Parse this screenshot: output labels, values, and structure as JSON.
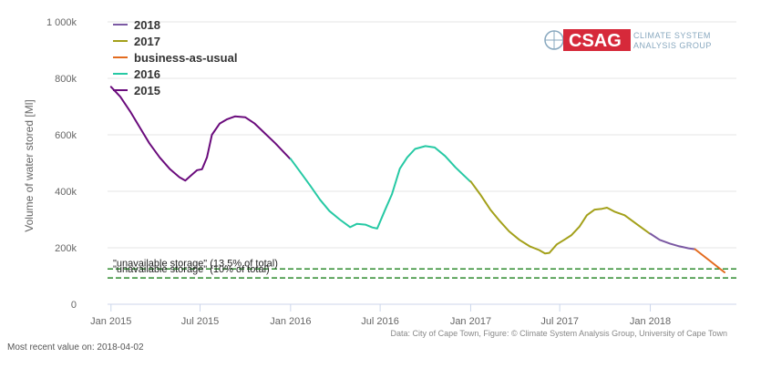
{
  "logo": {
    "brand": "CSAG",
    "line1": "CLIMATE SYSTEM",
    "line2": "ANALYSIS GROUP",
    "brand_color": "#d6293a"
  },
  "credit": "Data: City of Cape Town, Figure: © Climate System Analysis Group, University of Cape Town",
  "recent_note": "Most recent value on: 2018-04-02",
  "chart_data": {
    "type": "line",
    "title": "",
    "xlabel": "",
    "ylabel": "Volume of water stored [Ml]",
    "xlim": [
      "2014-12-25",
      "2018-06-25"
    ],
    "ylim": [
      0,
      1000000
    ],
    "y_ticks": [
      {
        "value": 0,
        "label": "0"
      },
      {
        "value": 200000,
        "label": "200k"
      },
      {
        "value": 400000,
        "label": "400k"
      },
      {
        "value": 600000,
        "label": "600k"
      },
      {
        "value": 800000,
        "label": "800k"
      },
      {
        "value": 1000000,
        "label": "1 000k"
      }
    ],
    "x_ticks": [
      {
        "date": "2015-01-01",
        "label": "Jan 2015"
      },
      {
        "date": "2015-07-01",
        "label": "Jul 2015"
      },
      {
        "date": "2016-01-01",
        "label": "Jan 2016"
      },
      {
        "date": "2016-07-01",
        "label": "Jul 2016"
      },
      {
        "date": "2017-01-01",
        "label": "Jan 2017"
      },
      {
        "date": "2017-07-01",
        "label": "Jul 2017"
      },
      {
        "date": "2018-01-01",
        "label": "Jan 2018"
      }
    ],
    "grid": true,
    "legend_position": "top-left",
    "legend_order": [
      "2018",
      "2017",
      "business-as-usual",
      "2016",
      "2015"
    ],
    "series": [
      {
        "name": "2015",
        "color": "#6a0b7c",
        "points": [
          [
            "2015-01-01",
            770000
          ],
          [
            "2015-01-20",
            735000
          ],
          [
            "2015-02-10",
            680000
          ],
          [
            "2015-03-01",
            625000
          ],
          [
            "2015-03-20",
            570000
          ],
          [
            "2015-04-10",
            520000
          ],
          [
            "2015-05-01",
            478000
          ],
          [
            "2015-05-20",
            450000
          ],
          [
            "2015-06-01",
            438000
          ],
          [
            "2015-06-10",
            452000
          ],
          [
            "2015-06-25",
            475000
          ],
          [
            "2015-07-05",
            478000
          ],
          [
            "2015-07-15",
            520000
          ],
          [
            "2015-07-25",
            600000
          ],
          [
            "2015-08-10",
            640000
          ],
          [
            "2015-08-25",
            655000
          ],
          [
            "2015-09-10",
            665000
          ],
          [
            "2015-10-01",
            662000
          ],
          [
            "2015-10-20",
            640000
          ],
          [
            "2015-11-10",
            605000
          ],
          [
            "2015-12-01",
            570000
          ],
          [
            "2015-12-31",
            515000
          ]
        ]
      },
      {
        "name": "2016",
        "color": "#26c9a4",
        "points": [
          [
            "2016-01-01",
            515000
          ],
          [
            "2016-01-20",
            470000
          ],
          [
            "2016-02-10",
            420000
          ],
          [
            "2016-03-01",
            370000
          ],
          [
            "2016-03-20",
            330000
          ],
          [
            "2016-04-10",
            300000
          ],
          [
            "2016-05-01",
            273000
          ],
          [
            "2016-05-15",
            285000
          ],
          [
            "2016-06-01",
            282000
          ],
          [
            "2016-06-15",
            272000
          ],
          [
            "2016-06-25",
            268000
          ],
          [
            "2016-07-10",
            330000
          ],
          [
            "2016-07-25",
            390000
          ],
          [
            "2016-08-10",
            480000
          ],
          [
            "2016-08-25",
            520000
          ],
          [
            "2016-09-10",
            550000
          ],
          [
            "2016-10-01",
            560000
          ],
          [
            "2016-10-20",
            555000
          ],
          [
            "2016-11-10",
            525000
          ],
          [
            "2016-12-01",
            485000
          ],
          [
            "2016-12-31",
            435000
          ]
        ]
      },
      {
        "name": "2017",
        "color": "#a3a01a",
        "points": [
          [
            "2017-01-01",
            435000
          ],
          [
            "2017-01-20",
            390000
          ],
          [
            "2017-02-10",
            335000
          ],
          [
            "2017-03-01",
            295000
          ],
          [
            "2017-03-20",
            258000
          ],
          [
            "2017-04-10",
            228000
          ],
          [
            "2017-05-01",
            205000
          ],
          [
            "2017-05-20",
            192000
          ],
          [
            "2017-06-01",
            180000
          ],
          [
            "2017-06-10",
            182000
          ],
          [
            "2017-06-25",
            212000
          ],
          [
            "2017-07-10",
            228000
          ],
          [
            "2017-07-25",
            245000
          ],
          [
            "2017-08-10",
            275000
          ],
          [
            "2017-08-25",
            315000
          ],
          [
            "2017-09-10",
            335000
          ],
          [
            "2017-09-25",
            338000
          ],
          [
            "2017-10-05",
            342000
          ],
          [
            "2017-10-20",
            328000
          ],
          [
            "2017-11-10",
            315000
          ],
          [
            "2017-12-01",
            288000
          ],
          [
            "2017-12-31",
            250000
          ]
        ]
      },
      {
        "name": "2018",
        "color": "#7b59a3",
        "points": [
          [
            "2018-01-01",
            250000
          ],
          [
            "2018-01-20",
            228000
          ],
          [
            "2018-02-10",
            215000
          ],
          [
            "2018-03-01",
            205000
          ],
          [
            "2018-03-20",
            198000
          ],
          [
            "2018-04-02",
            195000
          ]
        ]
      },
      {
        "name": "business-as-usual",
        "color": "#e36b1f",
        "points": [
          [
            "2018-04-02",
            195000
          ],
          [
            "2018-05-01",
            155000
          ],
          [
            "2018-06-01",
            113000
          ]
        ]
      }
    ],
    "thresholds": [
      {
        "value": 125000,
        "label": "\"unavailable storage\" (13.5% of total)",
        "color": "#2e8b2e"
      },
      {
        "value": 93000,
        "label": "\"unavailable storage\" (10% of total)",
        "color": "#2e8b2e"
      }
    ]
  }
}
